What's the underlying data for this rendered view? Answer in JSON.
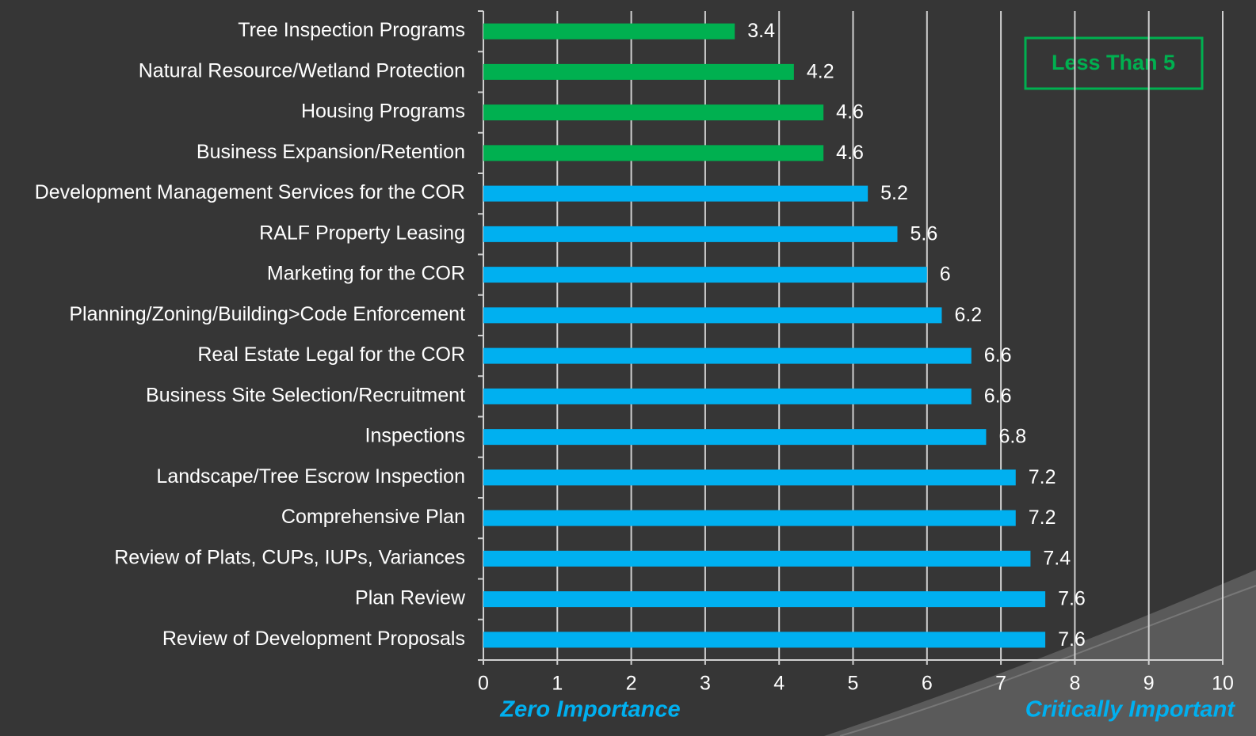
{
  "chart_data": {
    "type": "barh",
    "categories": [
      "Tree Inspection Programs",
      "Natural Resource/Wetland Protection",
      "Housing Programs",
      "Business Expansion/Retention",
      "Development Management Services for the COR",
      "RALF Property Leasing",
      "Marketing for the COR",
      "Planning/Zoning/Building>Code Enforcement",
      "Real Estate Legal for the COR",
      "Business Site Selection/Recruitment",
      "Inspections",
      "Landscape/Tree Escrow Inspection",
      "Comprehensive Plan",
      "Review of Plats, CUPs, IUPs, Variances",
      "Plan Review",
      "Review of Development Proposals"
    ],
    "values": [
      3.4,
      4.2,
      4.6,
      4.6,
      5.2,
      5.6,
      6,
      6.2,
      6.6,
      6.6,
      6.8,
      7.2,
      7.2,
      7.4,
      7.6,
      7.6
    ],
    "colors": [
      "#00b050",
      "#00b050",
      "#00b050",
      "#00b050",
      "#00b0f0",
      "#00b0f0",
      "#00b0f0",
      "#00b0f0",
      "#00b0f0",
      "#00b0f0",
      "#00b0f0",
      "#00b0f0",
      "#00b0f0",
      "#00b0f0",
      "#00b0f0",
      "#00b0f0"
    ],
    "xlim": [
      0,
      10
    ],
    "xticks": [
      0,
      1,
      2,
      3,
      4,
      5,
      6,
      7,
      8,
      9,
      10
    ],
    "grid": true,
    "annotations": {
      "box": "Less Than 5",
      "x_left": "Zero Importance",
      "x_right": "Critically Important"
    }
  }
}
